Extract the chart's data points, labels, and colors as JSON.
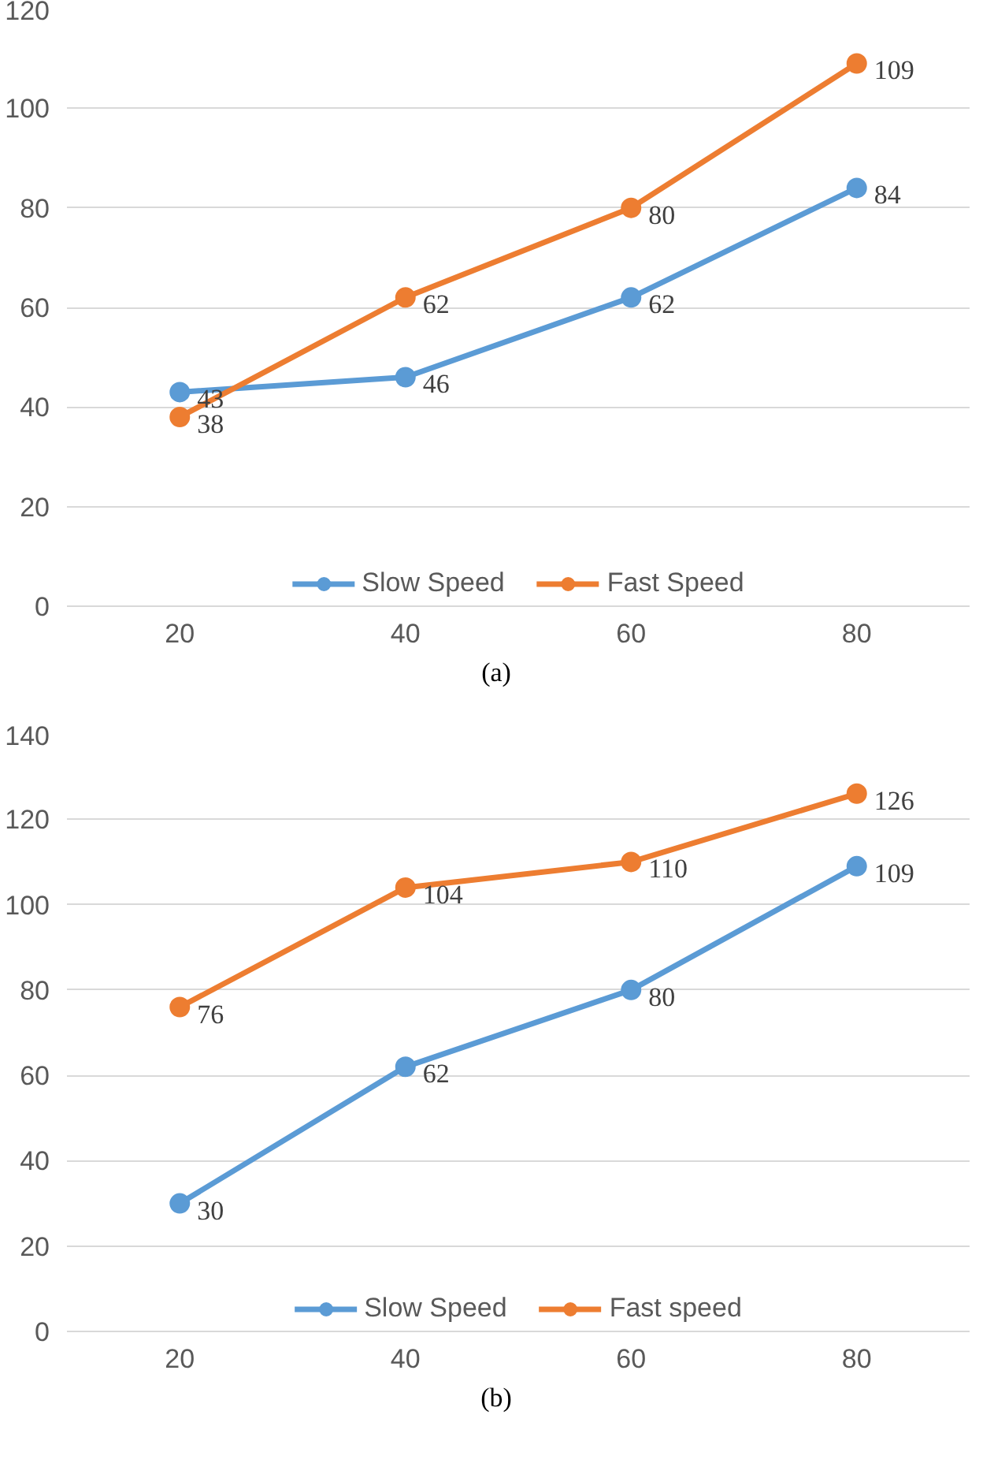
{
  "chart_data": [
    {
      "type": "line",
      "categories": [
        "20",
        "40",
        "60",
        "80"
      ],
      "ylim": [
        0,
        120
      ],
      "yticks": [
        0,
        20,
        40,
        60,
        80,
        100,
        120
      ],
      "grid": "y",
      "legend": "bottom",
      "marker": "circle",
      "line_style": "solid",
      "data_labels": true,
      "annotations": [
        "(a)"
      ],
      "series": [
        {
          "name": "Slow Speed",
          "color": "#5b9bd5",
          "values": [
            43,
            46,
            62,
            84
          ]
        },
        {
          "name": "Fast Speed",
          "color": "#ed7d31",
          "values": [
            38,
            62,
            80,
            109
          ]
        }
      ]
    },
    {
      "type": "line",
      "categories": [
        "20",
        "40",
        "60",
        "80"
      ],
      "ylim": [
        0,
        140
      ],
      "yticks": [
        0,
        20,
        40,
        60,
        80,
        100,
        120,
        140
      ],
      "grid": "y",
      "legend": "bottom",
      "marker": "circle",
      "line_style": "solid",
      "data_labels": true,
      "annotations": [
        "(b)"
      ],
      "series": [
        {
          "name": "Slow Speed",
          "color": "#5b9bd5",
          "values": [
            30,
            62,
            80,
            109
          ]
        },
        {
          "name": "Fast speed",
          "color": "#ed7d31",
          "values": [
            76,
            104,
            110,
            126
          ]
        }
      ]
    }
  ]
}
